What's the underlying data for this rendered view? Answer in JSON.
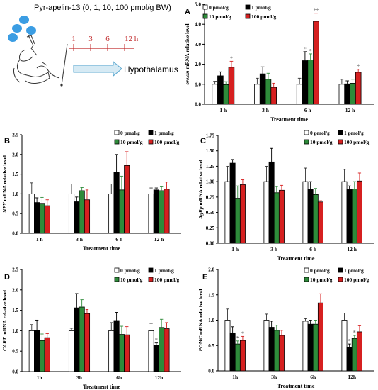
{
  "schematic": {
    "title": "Pyr-apelin-13 (0, 1, 10, 100 pmol/g BW)",
    "timeline": [
      "1",
      "3",
      "6",
      "12 h"
    ],
    "target": "Hypothalamus",
    "colors": {
      "timeline": "#c0292b",
      "arrow_fill": "#d6eaf4",
      "arrow_stroke": "#5aa7cf",
      "pills": "#3b9de3"
    }
  },
  "legend_labels": [
    "0 pmol/g",
    "1 pmol/g",
    "10 pmol/g",
    "100 pmol/g"
  ],
  "series_colors": [
    "#ffffff",
    "#000000",
    "#2e8b3a",
    "#d62020"
  ],
  "chart_data": [
    {
      "type": "bar",
      "panel": "A",
      "ylabel_italic": "orexin",
      "ylabel_rest": " mRNA relative level",
      "xlabel": "Treatment time",
      "categories": [
        "1 h",
        "3 h",
        "6 h",
        "12 h"
      ],
      "ylim": [
        0,
        5
      ],
      "yticks": [
        0,
        1,
        2,
        3,
        4,
        5
      ],
      "series": [
        {
          "name": "0 pmol/g",
          "values": [
            1.0,
            1.0,
            1.0,
            1.0
          ],
          "err": [
            0.15,
            0.3,
            0.3,
            0.25
          ]
        },
        {
          "name": "1 pmol/g",
          "values": [
            1.42,
            1.52,
            2.18,
            1.02
          ],
          "err": [
            0.2,
            0.35,
            0.45,
            0.15
          ]
        },
        {
          "name": "10 pmol/g",
          "values": [
            0.98,
            1.25,
            2.22,
            1.05
          ],
          "err": [
            0.15,
            0.3,
            0.3,
            0.2
          ]
        },
        {
          "name": "100 pmol/g",
          "values": [
            1.85,
            0.85,
            4.15,
            1.6
          ],
          "err": [
            0.3,
            0.2,
            0.4,
            0.15
          ]
        }
      ],
      "sig": [
        {
          "cat": 0,
          "series": 3,
          "text": "*"
        },
        {
          "cat": 2,
          "series": 1,
          "text": "*"
        },
        {
          "cat": 2,
          "series": 2,
          "text": "*"
        },
        {
          "cat": 2,
          "series": 3,
          "text": "**"
        },
        {
          "cat": 3,
          "series": 3,
          "text": "*"
        }
      ]
    },
    {
      "type": "bar",
      "panel": "B",
      "ylabel_italic": "NPY",
      "ylabel_rest": " mRNA relative level",
      "xlabel": "Treatment time",
      "categories": [
        "1 h",
        "3 h",
        "6 h",
        "12 h"
      ],
      "ylim": [
        0,
        2.5
      ],
      "yticks": [
        0,
        0.5,
        1,
        1.5,
        2,
        2.5
      ],
      "series": [
        {
          "name": "0 pmol/g",
          "values": [
            1.0,
            1.0,
            1.0,
            1.0
          ],
          "err": [
            0.28,
            0.25,
            0.25,
            0.15
          ]
        },
        {
          "name": "1 pmol/g",
          "values": [
            0.78,
            0.8,
            1.55,
            1.1
          ],
          "err": [
            0.12,
            0.12,
            0.45,
            0.05
          ]
        },
        {
          "name": "10 pmol/g",
          "values": [
            0.76,
            1.08,
            1.1,
            1.08
          ],
          "err": [
            0.15,
            0.08,
            0.35,
            0.1
          ]
        },
        {
          "name": "100 pmol/g",
          "values": [
            0.7,
            0.85,
            1.72,
            1.12
          ],
          "err": [
            0.15,
            0.25,
            0.35,
            0.18
          ]
        }
      ],
      "sig": []
    },
    {
      "type": "bar",
      "panel": "C",
      "ylabel_italic": "AgRp",
      "ylabel_rest": " mRNA relative level",
      "xlabel": "Treatment time",
      "categories": [
        "1 h",
        "3 h",
        "6 h",
        "12 h"
      ],
      "ylim": [
        0,
        1.75
      ],
      "yticks": [
        0,
        0.25,
        0.5,
        0.75,
        1,
        1.25,
        1.5,
        1.75
      ],
      "series": [
        {
          "name": "0 pmol/g",
          "values": [
            1.0,
            1.0,
            1.0,
            1.0
          ],
          "err": [
            0.25,
            0.25,
            0.22,
            0.2
          ]
        },
        {
          "name": "1 pmol/g",
          "values": [
            1.3,
            1.32,
            0.88,
            0.87
          ],
          "err": [
            0.06,
            0.22,
            0.12,
            0.06
          ]
        },
        {
          "name": "10 pmol/g",
          "values": [
            0.73,
            0.82,
            0.79,
            0.88
          ],
          "err": [
            0.2,
            0.1,
            0.1,
            0.12
          ]
        },
        {
          "name": "100 pmol/g",
          "values": [
            0.95,
            0.86,
            0.67,
            1.01
          ],
          "err": [
            0.08,
            0.08,
            0.02,
            0.13
          ]
        }
      ],
      "sig": []
    },
    {
      "type": "bar",
      "panel": "D",
      "ylabel_italic": "CART",
      "ylabel_rest": " mRNA relative level",
      "xlabel": "Treatment time",
      "categories": [
        "1h",
        "3h",
        "6h",
        "12h"
      ],
      "ylim": [
        0,
        2.5
      ],
      "yticks": [
        0,
        0.5,
        1,
        1.5,
        2,
        2.5
      ],
      "series": [
        {
          "name": "0 pmol/g",
          "values": [
            1.0,
            1.0,
            1.0,
            1.0
          ],
          "err": [
            0.15,
            0.06,
            0.2,
            0.18
          ]
        },
        {
          "name": "1 pmol/g",
          "values": [
            1.01,
            1.56,
            1.25,
            0.64
          ],
          "err": [
            0.25,
            0.35,
            0.2,
            0.06
          ]
        },
        {
          "name": "10 pmol/g",
          "values": [
            0.76,
            1.58,
            0.91,
            1.08
          ],
          "err": [
            0.16,
            0.18,
            0.2,
            0.2
          ]
        },
        {
          "name": "100 pmol/g",
          "values": [
            0.83,
            1.42,
            0.9,
            1.05
          ],
          "err": [
            0.1,
            0.1,
            0.2,
            0.15
          ]
        }
      ],
      "sig": [
        {
          "cat": 3,
          "series": 1,
          "text": "*"
        }
      ]
    },
    {
      "type": "bar",
      "panel": "E",
      "ylabel_italic": "POMC",
      "ylabel_rest": " mRNA relative level",
      "xlabel": "Treatment time",
      "categories": [
        "1h",
        "3h",
        "6h",
        "12h"
      ],
      "ylim": [
        0,
        2
      ],
      "yticks": [
        0,
        0.5,
        1,
        1.5,
        2
      ],
      "series": [
        {
          "name": "0 pmol/g",
          "values": [
            1.0,
            1.0,
            0.98,
            1.0
          ],
          "err": [
            0.22,
            0.12,
            0.05,
            0.14
          ]
        },
        {
          "name": "1 pmol/g",
          "values": [
            0.75,
            0.86,
            0.92,
            0.47
          ],
          "err": [
            0.12,
            0.12,
            0.08,
            0.06
          ]
        },
        {
          "name": "10 pmol/g",
          "values": [
            0.53,
            0.8,
            0.92,
            0.64
          ],
          "err": [
            0.06,
            0.1,
            0.08,
            0.06
          ]
        },
        {
          "name": "100 pmol/g",
          "values": [
            0.6,
            0.7,
            1.34,
            0.77
          ],
          "err": [
            0.08,
            0.1,
            0.18,
            0.12
          ]
        }
      ],
      "sig": [
        {
          "cat": 0,
          "series": 2,
          "text": "*"
        },
        {
          "cat": 0,
          "series": 3,
          "text": "*"
        },
        {
          "cat": 3,
          "series": 1,
          "text": "*"
        },
        {
          "cat": 3,
          "series": 2,
          "text": "*"
        }
      ]
    }
  ]
}
